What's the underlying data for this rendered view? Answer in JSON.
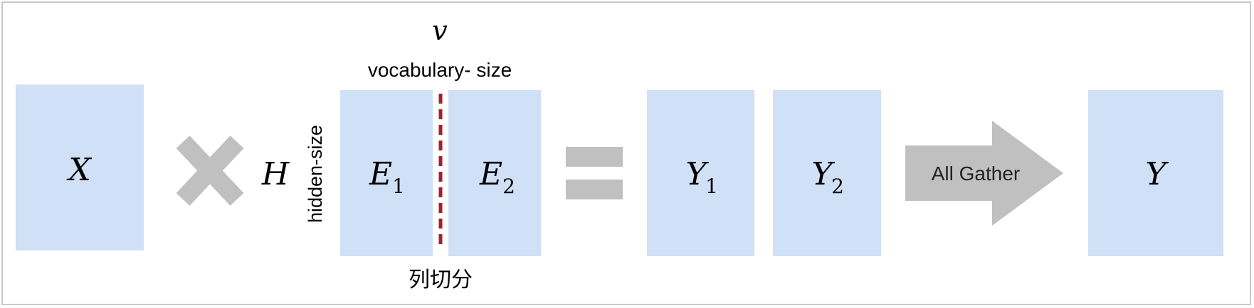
{
  "colors": {
    "block_fill": "#cfe0f7",
    "operator_gray": "#c0c0c0",
    "split_line": "#a81e2d",
    "frame_border": "#c9c9c9",
    "text": "#000000"
  },
  "blocks": {
    "x": {
      "symbol": "X"
    },
    "e1": {
      "symbol": "E",
      "subscript": "1"
    },
    "e2": {
      "symbol": "E",
      "subscript": "2"
    },
    "y1": {
      "symbol": "Y",
      "subscript": "1"
    },
    "y2": {
      "symbol": "Y",
      "subscript": "2"
    },
    "y": {
      "symbol": "Y"
    }
  },
  "labels": {
    "h_symbol": "H",
    "v_symbol": "v",
    "vocabulary": "vocabulary- size",
    "hidden": "hidden-size",
    "split_note": "列切分"
  },
  "operators": {
    "multiply_icon": "multiply-icon",
    "equals_icon": "equals-icon"
  },
  "arrow": {
    "label": "All Gather",
    "icon": "arrow-right-icon"
  }
}
